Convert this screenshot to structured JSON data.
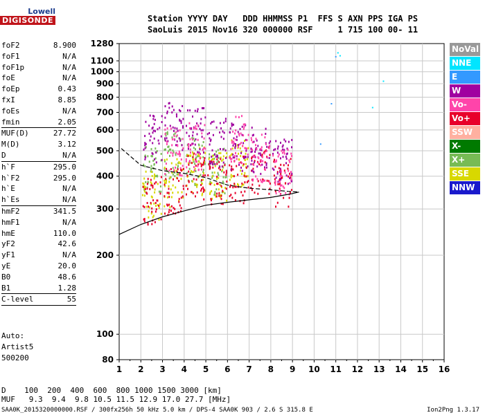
{
  "logo": {
    "line1": "Lowell",
    "line2": "DIGISONDE"
  },
  "header": {
    "line1": "Station YYYY DAY   DDD HHMMSS P1  FFS S AXN PPS IGA PS",
    "line2": "SaoLuis 2015 Nov16 320 000000 RSF     1 715 100 00- 11"
  },
  "params": [
    {
      "label": "foF2",
      "value": "8.900"
    },
    {
      "label": "foF1",
      "value": "N/A"
    },
    {
      "label": "foF1p",
      "value": "N/A"
    },
    {
      "label": "foE",
      "value": "N/A"
    },
    {
      "label": "foEp",
      "value": "0.43"
    },
    {
      "label": "fxI",
      "value": "8.85"
    },
    {
      "label": "foEs",
      "value": "N/A"
    },
    {
      "label": "fmin",
      "value": "2.05"
    },
    {
      "label": "MUF(D)",
      "value": "27.72"
    },
    {
      "label": "M(D)",
      "value": "3.12"
    },
    {
      "label": "D",
      "value": "N/A"
    },
    {
      "label": "h`F",
      "value": "295.0"
    },
    {
      "label": "h`F2",
      "value": "295.0"
    },
    {
      "label": "h`E",
      "value": "N/A"
    },
    {
      "label": "h`Es",
      "value": "N/A"
    },
    {
      "label": "hmF2",
      "value": "341.5"
    },
    {
      "label": "hmF1",
      "value": "N/A"
    },
    {
      "label": "hmE",
      "value": "110.0"
    },
    {
      "label": "yF2",
      "value": "42.6"
    },
    {
      "label": "yF1",
      "value": "N/A"
    },
    {
      "label": "yE",
      "value": "20.0"
    },
    {
      "label": "B0",
      "value": "48.6"
    },
    {
      "label": "B1",
      "value": "1.28"
    },
    {
      "label": "C-level",
      "value": "55"
    }
  ],
  "auto": {
    "line1": "Auto:",
    "line2": "Artist5",
    "line3": "500200"
  },
  "footer": {
    "d_row": "D    100  200  400  600  800 1000 1500 3000 [km]",
    "muf_row": "MUF   9.3  9.4  9.8 10.5 11.5 12.9 17.0 27.7 [MHz]",
    "file_info": "SAA0K_2015320000000.RSF / 300fx256h 50 kHz 5.0 km / DPS-4 SAA0K 903 / 2.6 S 315.8 E",
    "version": "Ion2Png 1.3.17"
  },
  "legend": [
    {
      "label": "NoVal",
      "bg": "#999999",
      "fg": "#ffffff"
    },
    {
      "label": "NNE",
      "bg": "#00e5ff",
      "fg": "#ffffff"
    },
    {
      "label": "E",
      "bg": "#3399ff",
      "fg": "#ffffff"
    },
    {
      "label": "W",
      "bg": "#a000a0",
      "fg": "#ffffff"
    },
    {
      "label": "Vo-",
      "bg": "#ff44aa",
      "fg": "#ffffff"
    },
    {
      "label": "Vo+",
      "bg": "#e8002a",
      "fg": "#ffffff"
    },
    {
      "label": "SSW",
      "bg": "#ffb0a0",
      "fg": "#ffffff"
    },
    {
      "label": "X-",
      "bg": "#007a00",
      "fg": "#ffffff"
    },
    {
      "label": "X+",
      "bg": "#77bb55",
      "fg": "#ffffff"
    },
    {
      "label": "SSE",
      "bg": "#d8d800",
      "fg": "#ffffff"
    },
    {
      "label": "NNW",
      "bg": "#1a1acc",
      "fg": "#ffffff"
    }
  ],
  "chart_data": {
    "type": "scatter",
    "title": "",
    "xlabel": "",
    "ylabel": "",
    "xlim": [
      1,
      16
    ],
    "ylim": [
      80,
      1280
    ],
    "y_scale": "log",
    "grid": true,
    "x_ticks": [
      1,
      2,
      3,
      4,
      5,
      6,
      7,
      8,
      9,
      10,
      11,
      12,
      13,
      14,
      15,
      16
    ],
    "y_ticks": [
      80,
      100,
      200,
      300,
      400,
      500,
      600,
      700,
      800,
      900,
      1000,
      1100,
      1280
    ],
    "legend_placement": "right",
    "series": [
      {
        "name": "X+",
        "type": "echo_cluster",
        "color": "#77bb55",
        "x": [
          2.5,
          3.5,
          4.5,
          5.5
        ],
        "y": [
          430,
          480,
          460,
          420
        ]
      },
      {
        "name": "SSE",
        "type": "echo_cluster",
        "color": "#d8d800",
        "x": [
          2.5,
          3.5,
          4.5,
          5.5,
          6.5
        ],
        "y": [
          340,
          380,
          420,
          400,
          450
        ]
      },
      {
        "name": "Vo+",
        "type": "echo_cluster",
        "color": "#e8002a",
        "x": [
          2.5,
          3.5,
          4.5,
          5.5,
          6.5,
          7.5,
          8.5
        ],
        "y": [
          325,
          350,
          400,
          380,
          390,
          420,
          380
        ]
      },
      {
        "name": "W",
        "type": "echo_cluster",
        "color": "#a000a0",
        "x": [
          2.5,
          3.5,
          4.5,
          5.5,
          6.5,
          7.5,
          8.5
        ],
        "y": [
          560,
          620,
          600,
          540,
          520,
          500,
          450
        ]
      },
      {
        "name": "Vo-",
        "type": "echo_cluster",
        "color": "#ff44aa",
        "x": [
          3.5,
          4.5,
          6.5,
          7.5,
          8.5
        ],
        "y": [
          500,
          520,
          560,
          470,
          420
        ]
      },
      {
        "name": "NNE",
        "type": "scatter_points",
        "color": "#00e5ff",
        "x": [
          11.1,
          11.2,
          13.2,
          12.7
        ],
        "y": [
          1180,
          1150,
          920,
          730
        ]
      },
      {
        "name": "E",
        "type": "scatter_points",
        "color": "#3399ff",
        "x": [
          11.0,
          10.8,
          10.3
        ],
        "y": [
          1140,
          755,
          530
        ]
      }
    ],
    "profile_curves": [
      {
        "name": "upper",
        "x": [
          1.1,
          2,
          3,
          4,
          5,
          6,
          7,
          8,
          8.8,
          9.3
        ],
        "y": [
          510,
          440,
          420,
          410,
          395,
          370,
          360,
          355,
          350,
          348
        ]
      },
      {
        "name": "lower",
        "x": [
          1.0,
          2,
          3,
          4,
          5,
          6,
          7,
          8,
          8.9
        ],
        "y": [
          240,
          262,
          280,
          295,
          310,
          318,
          325,
          332,
          342
        ]
      }
    ]
  }
}
